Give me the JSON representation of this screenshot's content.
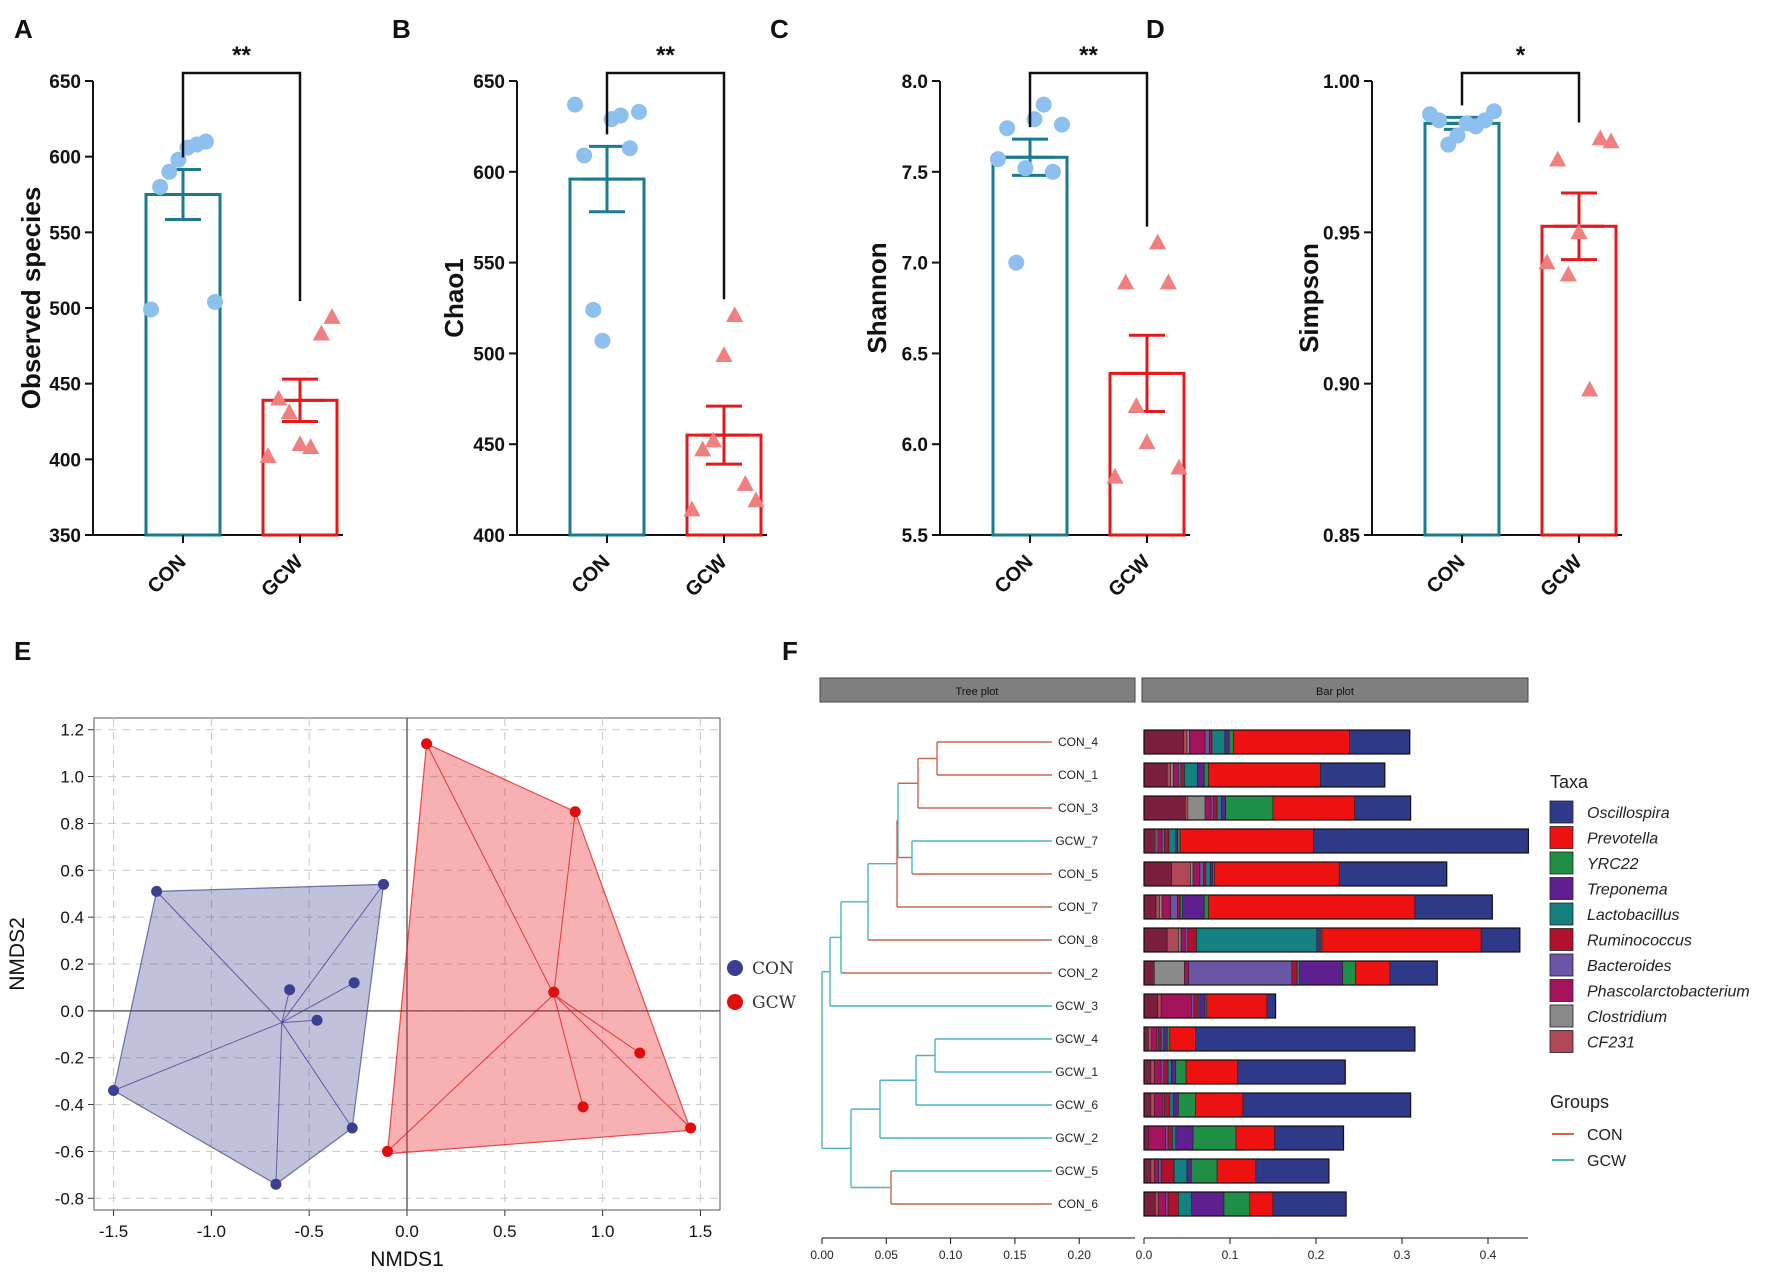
{
  "panel_labels": [
    "A",
    "B",
    "C",
    "D",
    "E",
    "F"
  ],
  "colors": {
    "con": "#1b7a8f",
    "gcw": "#e31a1c",
    "con_point": "#8ec0ef",
    "gcw_point": "#f08080",
    "nmds_con": "#3b3f8f",
    "nmds_gcw": "#e00d0d",
    "tree_con": "#c9674f",
    "tree_gcw": "#4bb3c7"
  },
  "chart_data": [
    {
      "type": "bar",
      "panel": "A",
      "ylabel": "Observed species",
      "categories": [
        "CON",
        "GCW"
      ],
      "values": [
        575,
        439
      ],
      "errors": [
        16.5,
        14
      ],
      "ylim": [
        350,
        650
      ],
      "yticks": [
        "350",
        "400",
        "450",
        "500",
        "550",
        "600",
        "650"
      ],
      "points": [
        [
          499,
          580,
          590,
          598,
          606,
          608,
          610,
          504
        ],
        [
          402,
          440,
          431,
          410,
          408,
          483,
          494
        ]
      ],
      "significance": "**"
    },
    {
      "type": "bar",
      "panel": "B",
      "ylabel": "Chao1",
      "categories": [
        "CON",
        "GCW"
      ],
      "values": [
        596,
        455
      ],
      "errors": [
        18,
        16
      ],
      "ylim": [
        400,
        650
      ],
      "yticks": [
        "400",
        "450",
        "500",
        "550",
        "600",
        "650"
      ],
      "points": [
        [
          637,
          609,
          524,
          507,
          629,
          631,
          613,
          633
        ],
        [
          414,
          447,
          452,
          499,
          521,
          428,
          419
        ]
      ],
      "significance": "**"
    },
    {
      "type": "bar",
      "panel": "C",
      "ylabel": "Shannon",
      "categories": [
        "CON",
        "GCW"
      ],
      "values": [
        7.58,
        6.39
      ],
      "errors": [
        0.1,
        0.21
      ],
      "ylim": [
        5.5,
        8.0
      ],
      "yticks": [
        "5.5",
        "6.0",
        "6.5",
        "7.0",
        "7.5",
        "8.0"
      ],
      "points": [
        [
          7.57,
          7.74,
          7.0,
          7.52,
          7.79,
          7.87,
          7.5,
          7.76
        ],
        [
          5.82,
          6.89,
          6.21,
          6.01,
          7.11,
          6.89,
          5.87
        ]
      ],
      "significance": "**"
    },
    {
      "type": "bar",
      "panel": "D",
      "ylabel": "Simpson",
      "categories": [
        "CON",
        "GCW"
      ],
      "values": [
        0.986,
        0.952
      ],
      "errors": [
        0.002,
        0.011
      ],
      "ylim": [
        0.85,
        1.0
      ],
      "yticks": [
        "0.85",
        "0.90",
        "0.95",
        "1.00"
      ],
      "points": [
        [
          0.989,
          0.987,
          0.979,
          0.982,
          0.986,
          0.985,
          0.987,
          0.99
        ],
        [
          0.94,
          0.974,
          0.936,
          0.95,
          0.898,
          0.981,
          0.98
        ]
      ],
      "significance": "*"
    },
    {
      "type": "scatter",
      "panel": "E",
      "xlabel": "NMDS1",
      "ylabel": "NMDS2",
      "xlim": [
        -1.6,
        1.6
      ],
      "ylim": [
        -0.85,
        1.25
      ],
      "xticks": [
        "-1.5",
        "-1.0",
        "-0.5",
        "0.0",
        "0.5",
        "1.0",
        "1.5"
      ],
      "yticks": [
        "1.2",
        "1.0",
        "0.8",
        "0.6",
        "0.4",
        "0.2",
        "0.0",
        "-0.2",
        "-0.4",
        "-0.6",
        "-0.8"
      ],
      "legend": [
        "CON",
        "GCW"
      ],
      "groups": [
        {
          "name": "CON",
          "centroid": [
            -0.64,
            -0.05
          ],
          "hull": [
            [
              -1.5,
              -0.34
            ],
            [
              -0.67,
              -0.74
            ],
            [
              -0.28,
              -0.5
            ],
            [
              -0.12,
              0.54
            ],
            [
              -1.28,
              0.51
            ]
          ],
          "points": [
            [
              -1.5,
              -0.34
            ],
            [
              -1.28,
              0.51
            ],
            [
              -0.12,
              0.54
            ],
            [
              -0.6,
              0.09
            ],
            [
              -0.27,
              0.12
            ],
            [
              -0.46,
              -0.04
            ],
            [
              -0.28,
              -0.5
            ],
            [
              -0.67,
              -0.74
            ]
          ]
        },
        {
          "name": "GCW",
          "centroid": [
            0.75,
            0.07
          ],
          "hull": [
            [
              -0.1,
              -0.61
            ],
            [
              1.45,
              -0.51
            ],
            [
              0.86,
              0.85
            ],
            [
              0.1,
              1.14
            ]
          ],
          "points": [
            [
              0.1,
              1.14
            ],
            [
              0.86,
              0.85
            ],
            [
              0.75,
              0.08
            ],
            [
              1.19,
              -0.18
            ],
            [
              0.9,
              -0.41
            ],
            [
              1.45,
              -0.5
            ],
            [
              -0.1,
              -0.6
            ]
          ]
        }
      ]
    },
    {
      "type": "bar",
      "panel": "F",
      "orientation": "stacked-horizontal",
      "header_tree": "Tree plot",
      "header_bar": "Bar plot",
      "tree_ticks": [
        "0.00",
        "0.05",
        "0.10",
        "0.15",
        "0.20"
      ],
      "bar_ticks": [
        "0.0",
        "0.1",
        "0.2",
        "0.3",
        "0.4"
      ],
      "legend_title": "Taxa",
      "groups_title": "Groups",
      "groups_legend": [
        "CON",
        "GCW"
      ],
      "taxa": [
        "Oscillospira",
        "Prevotella",
        "YRC22",
        "Treponema",
        "Lactobacillus",
        "Ruminococcus",
        "Bacteroides",
        "Phascolarctobacterium",
        "Clostridium",
        "CF231"
      ],
      "taxa_colors": [
        "#2e3a87",
        "#ee1111",
        "#1e8f44",
        "#5e1f8f",
        "#158080",
        "#b3102e",
        "#6b55a5",
        "#a3145c",
        "#8a8a8a",
        "#b04858"
      ],
      "samples": [
        {
          "name": "CON_4",
          "group": "CON",
          "values": [
            0.07,
            0.135,
            0.005,
            0.005,
            0.015,
            0.003,
            0.005,
            0.018,
            0.003,
            0.004
          ],
          "other": 0.046
        },
        {
          "name": "CON_1",
          "group": "CON",
          "values": [
            0.075,
            0.13,
            0.005,
            0.008,
            0.015,
            0.004,
            0.003,
            0.006,
            0.003,
            0.004
          ],
          "other": 0.027
        },
        {
          "name": "CON_3",
          "group": "CON",
          "values": [
            0.065,
            0.095,
            0.055,
            0.005,
            0.005,
            0.004,
            0.003,
            0.007,
            0.02,
            0.003
          ],
          "other": 0.048
        },
        {
          "name": "GCW_7",
          "group": "GCW",
          "values": [
            0.25,
            0.155,
            0.003,
            0.002,
            0.008,
            0.005,
            0.003,
            0.005,
            0.002,
            0.002
          ],
          "other": 0.012
        },
        {
          "name": "CON_5",
          "group": "CON",
          "values": [
            0.125,
            0.145,
            0.002,
            0.003,
            0.005,
            0.003,
            0.004,
            0.008,
            0.003,
            0.022
          ],
          "other": 0.032
        },
        {
          "name": "CON_7",
          "group": "CON",
          "values": [
            0.09,
            0.24,
            0.005,
            0.025,
            0.003,
            0.003,
            0.008,
            0.01,
            0.003,
            0.004
          ],
          "other": 0.014
        },
        {
          "name": "CON_8",
          "group": "CON",
          "values": [
            0.045,
            0.185,
            0.002,
            0.004,
            0.14,
            0.01,
            0.003,
            0.005,
            0.003,
            0.013
          ],
          "other": 0.027
        },
        {
          "name": "CON_2",
          "group": "CON",
          "values": [
            0.055,
            0.04,
            0.015,
            0.05,
            0.003,
            0.006,
            0.12,
            0.005,
            0.035,
            0.0
          ],
          "other": 0.012
        },
        {
          "name": "GCW_3",
          "group": "GCW",
          "values": [
            0.01,
            0.07,
            0.002,
            0.006,
            0.002,
            0.005,
            0.003,
            0.035,
            0.0,
            0.004
          ],
          "other": 0.016
        },
        {
          "name": "GCW_4",
          "group": "GCW",
          "values": [
            0.255,
            0.03,
            0.003,
            0.004,
            0.003,
            0.003,
            0.002,
            0.006,
            0.0,
            0.004
          ],
          "other": 0.005
        },
        {
          "name": "GCW_1",
          "group": "GCW",
          "values": [
            0.125,
            0.06,
            0.012,
            0.005,
            0.004,
            0.005,
            0.003,
            0.008,
            0.0,
            0.004
          ],
          "other": 0.008
        },
        {
          "name": "GCW_6",
          "group": "GCW",
          "values": [
            0.195,
            0.055,
            0.02,
            0.006,
            0.004,
            0.006,
            0.002,
            0.01,
            0.0,
            0.004
          ],
          "other": 0.008
        },
        {
          "name": "GCW_2",
          "group": "GCW",
          "values": [
            0.08,
            0.045,
            0.05,
            0.02,
            0.004,
            0.005,
            0.003,
            0.02,
            0.0,
            0.0
          ],
          "other": 0.005
        },
        {
          "name": "GCW_5",
          "group": "GCW",
          "values": [
            0.085,
            0.045,
            0.03,
            0.005,
            0.015,
            0.015,
            0.003,
            0.005,
            0.0,
            0.004
          ],
          "other": 0.008
        },
        {
          "name": "CON_6",
          "group": "CON",
          "values": [
            0.085,
            0.027,
            0.03,
            0.038,
            0.015,
            0.012,
            0.003,
            0.008,
            0.0,
            0.004
          ],
          "other": 0.013
        }
      ]
    }
  ]
}
